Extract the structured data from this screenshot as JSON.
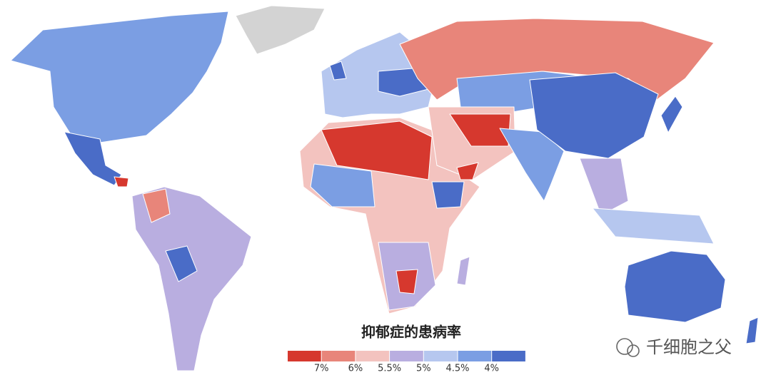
{
  "legend": {
    "title": "抑郁症的患病率",
    "colors": [
      "#d6382e",
      "#e8857a",
      "#f3c3bf",
      "#b9aee0",
      "#b6c7ef",
      "#7b9ee3",
      "#4a6cc7"
    ],
    "labels": [
      "7%",
      "6%",
      "5.5%",
      "5%",
      "4.5%",
      "4%"
    ]
  },
  "watermark": "千细胞之父"
}
